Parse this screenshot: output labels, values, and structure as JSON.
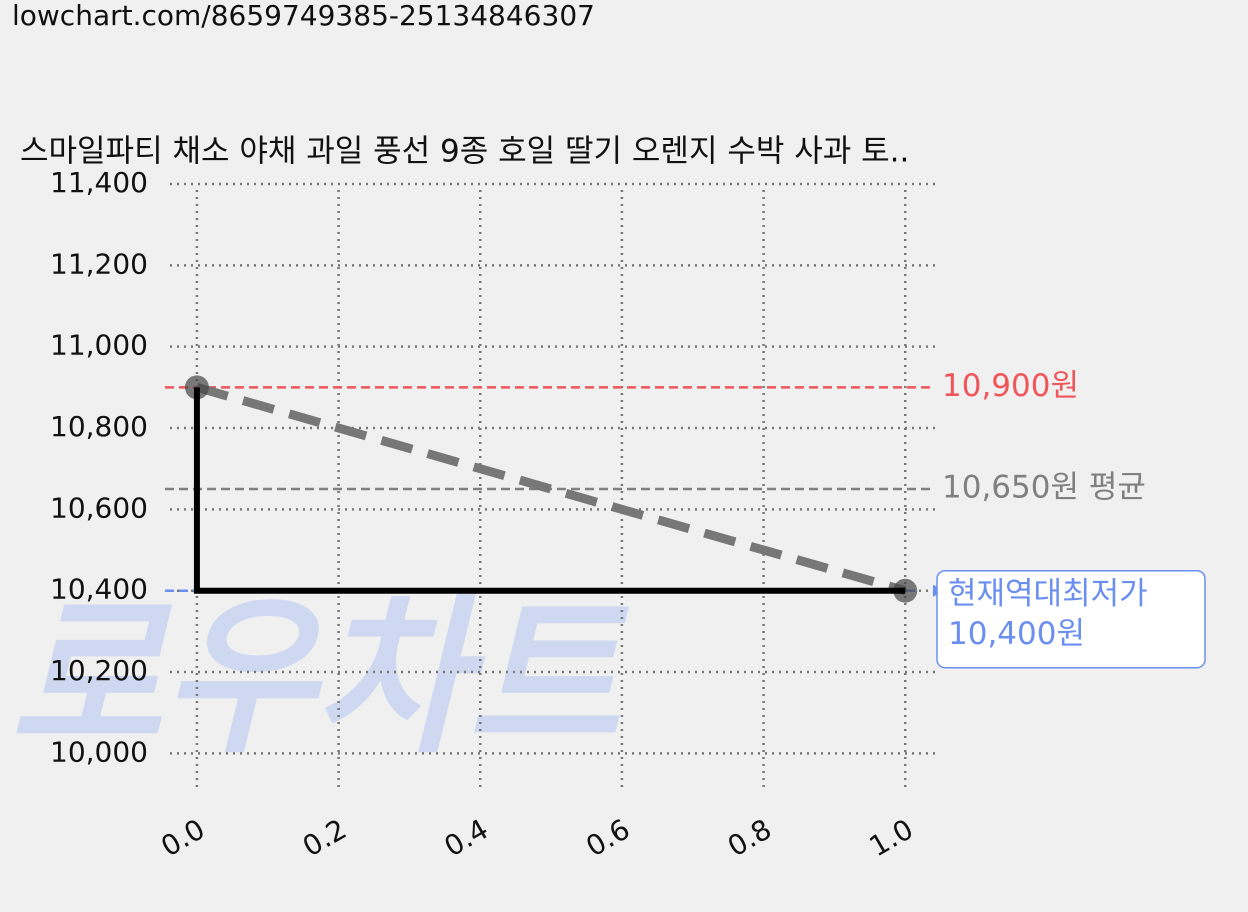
{
  "url": "lowchart.com/8659749385-25134846307",
  "chart_data": {
    "type": "line",
    "title": "스마일파티 채소 야채 과일 풍선 9종 호일 딸기 오렌지 수박 사과 토..",
    "watermark": "로우차트",
    "xlim": [
      -0.038,
      1.042
    ],
    "ylim": [
      9910,
      11400
    ],
    "xticks": [
      {
        "value": 0,
        "label": "0.0"
      },
      {
        "value": 0.2,
        "label": "0.2"
      },
      {
        "value": 0.4,
        "label": "0.4"
      },
      {
        "value": 0.6,
        "label": "0.6"
      },
      {
        "value": 0.8,
        "label": "0.8"
      },
      {
        "value": 1,
        "label": "1.0"
      }
    ],
    "yticks": [
      {
        "value": 10000,
        "label": "10,000"
      },
      {
        "value": 10200,
        "label": "10,200"
      },
      {
        "value": 10400,
        "label": "10,400"
      },
      {
        "value": 10600,
        "label": "10,600"
      },
      {
        "value": 10800,
        "label": "10,800"
      },
      {
        "value": 11000,
        "label": "11,000"
      },
      {
        "value": 11200,
        "label": "11,200"
      },
      {
        "value": 11400,
        "label": "11,400"
      }
    ],
    "grid": true,
    "series": [
      {
        "color": "#777777",
        "style": "dashed",
        "markers": true,
        "x": [
          0,
          1
        ],
        "values": [
          10900,
          10400
        ]
      },
      {
        "color": "#000000",
        "style": "solid",
        "markers": false,
        "x": [
          0,
          0,
          1
        ],
        "values": [
          10900,
          10400,
          10400
        ]
      }
    ],
    "reference_lines": [
      {
        "value": 10900,
        "color": "#f0555a",
        "label": "10,900원"
      },
      {
        "value": 10650,
        "color": "#808080",
        "label": "10,650원 평균"
      },
      {
        "value": 10400,
        "color": "#6a8ff0",
        "label_lines": [
          "현재역대최저가",
          "10,400원"
        ]
      }
    ]
  }
}
